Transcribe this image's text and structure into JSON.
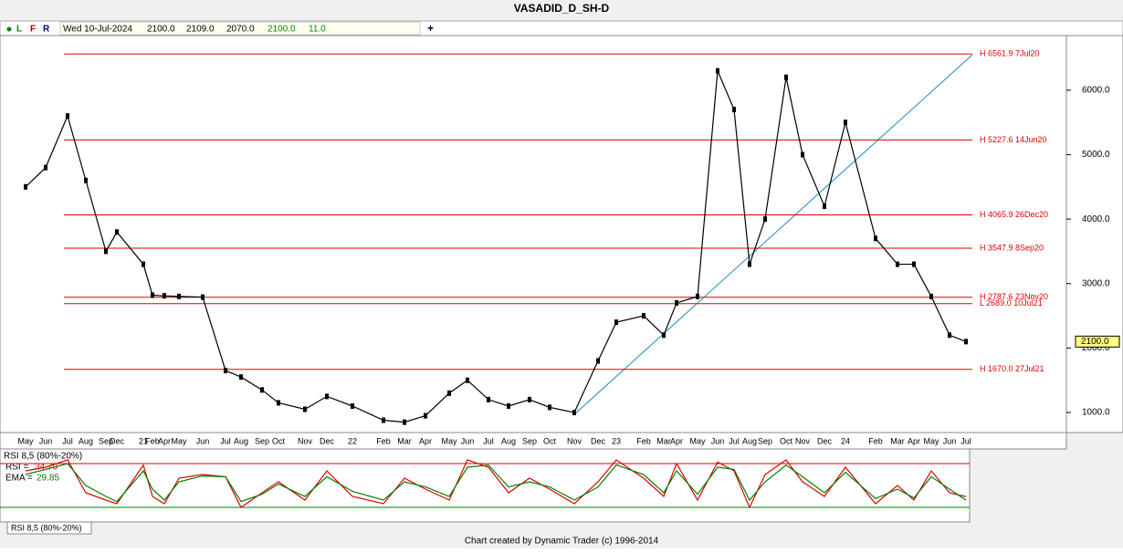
{
  "title": "VASADID_D_SH-D",
  "toolbar": {
    "flags": [
      "L",
      "F",
      "R"
    ],
    "date": "Wed 10-Jul-2024",
    "open": "2100.0",
    "high": "2109.0",
    "low": "2070.0",
    "close": "2100.0",
    "change": "11.0",
    "add": "+"
  },
  "rsi_readout": {
    "title": "RSI 8,5 (80%-20%)",
    "rsi_label": "RSI =",
    "rsi_value": "34.70",
    "ema_label": "EMA =",
    "ema_value": "29.85"
  },
  "tab": "RSI 8,5 (80%-20%)",
  "footer": "Chart created by Dynamic Trader  (c) 1996-2014",
  "chart_data": [
    {
      "type": "line",
      "categories": [
        "May",
        "Jun",
        "Jul",
        "Aug",
        "Sep",
        "Dec",
        "21",
        "Feb",
        "Apr",
        "May",
        "Jun",
        "Jul",
        "Aug",
        "Sep",
        "Oct",
        "Nov",
        "Dec",
        "22",
        "Feb",
        "Mar",
        "Apr",
        "May",
        "Jun",
        "Jul",
        "Aug",
        "Sep",
        "Oct",
        "Nov",
        "Dec",
        "23",
        "Feb",
        "Mar",
        "Apr",
        "May",
        "Jun",
        "Jul",
        "Aug",
        "Sep",
        "Oct",
        "Nov",
        "Dec",
        "24",
        "Feb",
        "Mar",
        "Apr",
        "May",
        "Jun",
        "Jul"
      ],
      "series": [
        {
          "name": "Close",
          "color": "#000000",
          "values": [
            4500,
            4800,
            5600,
            4600,
            3500,
            3800,
            3300,
            2820,
            2810,
            2800,
            2790,
            1650,
            1550,
            1350,
            1150,
            1050,
            1250,
            1100,
            880,
            850,
            950,
            1300,
            1500,
            1200,
            1100,
            1200,
            1080,
            1000,
            1800,
            2400,
            2500,
            2200,
            2700,
            2800,
            6300,
            5700,
            3300,
            4000,
            6200,
            5000,
            4200,
            5500,
            3700,
            3300,
            3300,
            2800,
            2200,
            2100
          ]
        }
      ],
      "ylim": [
        689,
        6847
      ],
      "yticks": [
        {
          "value": 1000,
          "label": "1000.0"
        },
        {
          "value": 2000,
          "label": "2000.0"
        },
        {
          "value": 3000,
          "label": "3000.0"
        },
        {
          "value": 4000,
          "label": "4000.0"
        },
        {
          "value": 5000,
          "label": "5000.0"
        },
        {
          "value": 6000,
          "label": "6000.0"
        }
      ],
      "levels": [
        {
          "value": 6561.9,
          "label": "H 6561.9 7Jul20"
        },
        {
          "value": 5227.6,
          "label": "H 5227.6 14Jun20"
        },
        {
          "value": 4065.9,
          "label": "H 4065.9 26Dec20"
        },
        {
          "value": 3547.9,
          "label": "H 3547.9 8Sep20"
        },
        {
          "value": 2787.6,
          "label": "H 2787.6 23Nov20"
        },
        {
          "value": 2689.0,
          "label": "L 2689.0 10Jul21"
        },
        {
          "value": 1670.0,
          "label": "H 1670.0 27Jul21"
        }
      ],
      "level_color": "#e00000",
      "last_price": {
        "value": 2100,
        "label": "2100.0"
      }
    },
    {
      "type": "line",
      "series": [
        {
          "name": "RSI",
          "color": "#e00000",
          "values": [
            70,
            75,
            85,
            40,
            30,
            25,
            78,
            35,
            25,
            60,
            65,
            62,
            20,
            40,
            55,
            30,
            70,
            35,
            25,
            60,
            45,
            30,
            85,
            75,
            40,
            60,
            45,
            25,
            55,
            85,
            60,
            35,
            80,
            30,
            82,
            70,
            20,
            65,
            85,
            55,
            35,
            75,
            25,
            50,
            30,
            70,
            40,
            34.7
          ]
        },
        {
          "name": "EMA",
          "color": "#008000",
          "values": [
            65,
            72,
            80,
            50,
            35,
            28,
            70,
            45,
            30,
            55,
            63,
            62,
            28,
            38,
            52,
            35,
            62,
            42,
            30,
            55,
            48,
            35,
            75,
            78,
            48,
            55,
            48,
            30,
            48,
            78,
            65,
            40,
            70,
            38,
            75,
            72,
            30,
            55,
            78,
            62,
            40,
            68,
            32,
            45,
            33,
            62,
            45,
            29.85
          ]
        }
      ],
      "ylim": [
        0,
        100
      ],
      "bands": [
        {
          "value": 80,
          "color": "#e00000"
        },
        {
          "value": 20,
          "color": "#008000"
        }
      ]
    }
  ]
}
